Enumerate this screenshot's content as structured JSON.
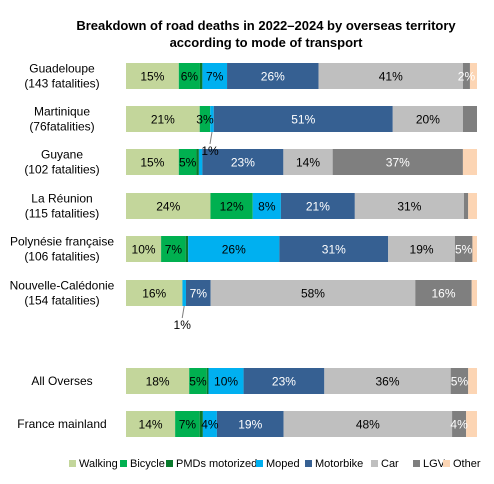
{
  "chart_data": {
    "type": "bar",
    "orientation": "horizontal",
    "stacked": true,
    "percent": true,
    "title_lines": [
      "Breakdown of road deaths in 2022–2024 by overseas territory",
      "according to mode of transport"
    ],
    "categories": [
      {
        "lines": [
          "Guadeloupe",
          "(143 fatalities)"
        ]
      },
      {
        "lines": [
          "Martinique",
          "(76fatalities)"
        ]
      },
      {
        "lines": [
          "Guyane",
          "(102 fatalities)"
        ]
      },
      {
        "lines": [
          "La Réunion",
          "(115 fatalities)"
        ]
      },
      {
        "lines": [
          "Polynésie française",
          "(106 fatalities)"
        ]
      },
      {
        "lines": [
          "Nouvelle-Calédonie",
          "(154 fatalities)"
        ]
      },
      {
        "lines": [
          "All Overses"
        ]
      },
      {
        "lines": [
          "France mainland"
        ]
      }
    ],
    "series": [
      {
        "name": "Walking",
        "color": "#c3d69b",
        "label_color": "#000000",
        "values": [
          15,
          21,
          15,
          24,
          10,
          16,
          18,
          14
        ],
        "labels": [
          "15%",
          "21%",
          "15%",
          "24%",
          "10%",
          "16%",
          "18%",
          "14%"
        ]
      },
      {
        "name": "Bicycle",
        "color": "#00b050",
        "label_color": "#000000",
        "values": [
          6,
          3,
          5,
          12,
          7,
          0,
          5,
          7
        ],
        "labels": [
          "6%",
          "3%",
          "5%",
          "12%",
          "7%",
          "",
          "5%",
          "7%"
        ]
      },
      {
        "name": "PMDs motorized",
        "color": "#0a7a2c",
        "label_color": "#000000",
        "values": [
          0.7,
          0,
          0.7,
          0,
          0.7,
          0,
          0.5,
          0.9
        ],
        "labels": [
          "",
          "",
          "",
          "",
          "",
          "",
          "",
          ""
        ]
      },
      {
        "name": "Moped",
        "color": "#00b0f0",
        "label_color": "#000000",
        "values": [
          7,
          1,
          1,
          8,
          26,
          1,
          10,
          4
        ],
        "labels": [
          "7%",
          "",
          "",
          "8%",
          "26%",
          "",
          "10%",
          "4%"
        ]
      },
      {
        "name": "Motorbike",
        "color": "#366092",
        "label_color": "#ffffff",
        "values": [
          26,
          51,
          23,
          21,
          31,
          7,
          23,
          19
        ],
        "labels": [
          "26%",
          "51%",
          "23%",
          "21%",
          "31%",
          "7%",
          "23%",
          "19%"
        ]
      },
      {
        "name": "Car",
        "color": "#bfbfbf",
        "label_color": "#000000",
        "values": [
          41,
          20,
          14,
          31,
          19,
          58,
          36,
          48
        ],
        "labels": [
          "41%",
          "20%",
          "14%",
          "31%",
          "19%",
          "58%",
          "36%",
          "48%"
        ]
      },
      {
        "name": "LGV",
        "color": "#7f7f7f",
        "label_color": "#ffffff",
        "values": [
          2,
          4,
          37,
          1.2,
          5,
          16,
          5,
          4
        ],
        "labels": [
          "2%",
          "",
          "37%",
          "",
          "5%",
          "16%",
          "5%",
          "4%"
        ]
      },
      {
        "name": "Other",
        "color": "#fcd5b4",
        "label_color": "#000000",
        "values": [
          2,
          0,
          4,
          2.5,
          1.3,
          1.5,
          2.5,
          3.1
        ],
        "labels": [
          "",
          "",
          "",
          "",
          "",
          "",
          "",
          ""
        ]
      }
    ],
    "callouts": [
      {
        "category_index": 1,
        "text": "1%"
      },
      {
        "category_index": 5,
        "text": "1%"
      }
    ],
    "xlim": [
      0,
      100
    ],
    "grid": false,
    "legend_position": "bottom"
  }
}
